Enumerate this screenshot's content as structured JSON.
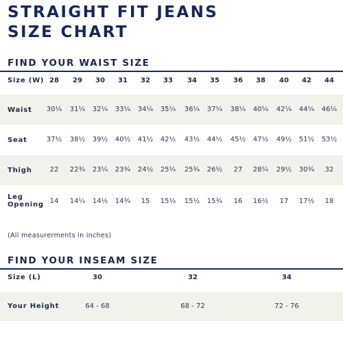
{
  "title": {
    "line1": "STRAIGHT FIT JEANS",
    "line2": "SIZE CHART"
  },
  "waist_section": {
    "heading": "FIND YOUR WAIST SIZE",
    "header_label": "Size (W)",
    "sizes": [
      "28",
      "29",
      "30",
      "31",
      "32",
      "33",
      "34",
      "35",
      "36",
      "38",
      "40",
      "42",
      "44"
    ],
    "rows": [
      {
        "label": "Waist",
        "values": [
          "30¼",
          "31¼",
          "32¼",
          "33¼",
          "34¼",
          "35¼",
          "36¼",
          "37¼",
          "38¼",
          "40¼",
          "42¼",
          "44¼",
          "46¼"
        ]
      },
      {
        "label": "Seat",
        "values": [
          "37½",
          "38½",
          "39½",
          "40½",
          "41½",
          "42½",
          "43½",
          "44½",
          "45½",
          "47½",
          "49½",
          "51½",
          "53½"
        ]
      },
      {
        "label": "Thigh",
        "values": [
          "22",
          "22¾",
          "23¼",
          "23¾",
          "24½",
          "25¼",
          "25¾",
          "26½",
          "27",
          "28¼",
          "29½",
          "30¾",
          "32"
        ]
      },
      {
        "label_line1": "Leg",
        "label_line2": "Opening",
        "values": [
          "14",
          "14¼",
          "14½",
          "14¾",
          "15",
          "15¼",
          "15½",
          "15¾",
          "16",
          "16½",
          "17",
          "17½",
          "18"
        ]
      }
    ],
    "note": "(All measurerments in inches)"
  },
  "inseam_section": {
    "heading": "FIND YOUR INSEAM SIZE",
    "header_label": "Size (L)",
    "sizes": [
      "30",
      "32",
      "34"
    ],
    "row_label": "Your Height",
    "heights": [
      "64 - 68",
      "68 - 72",
      "72 - 76"
    ]
  },
  "colors": {
    "navy": "#14285a",
    "band": "#f2f2ec",
    "text": "#2a3450"
  }
}
